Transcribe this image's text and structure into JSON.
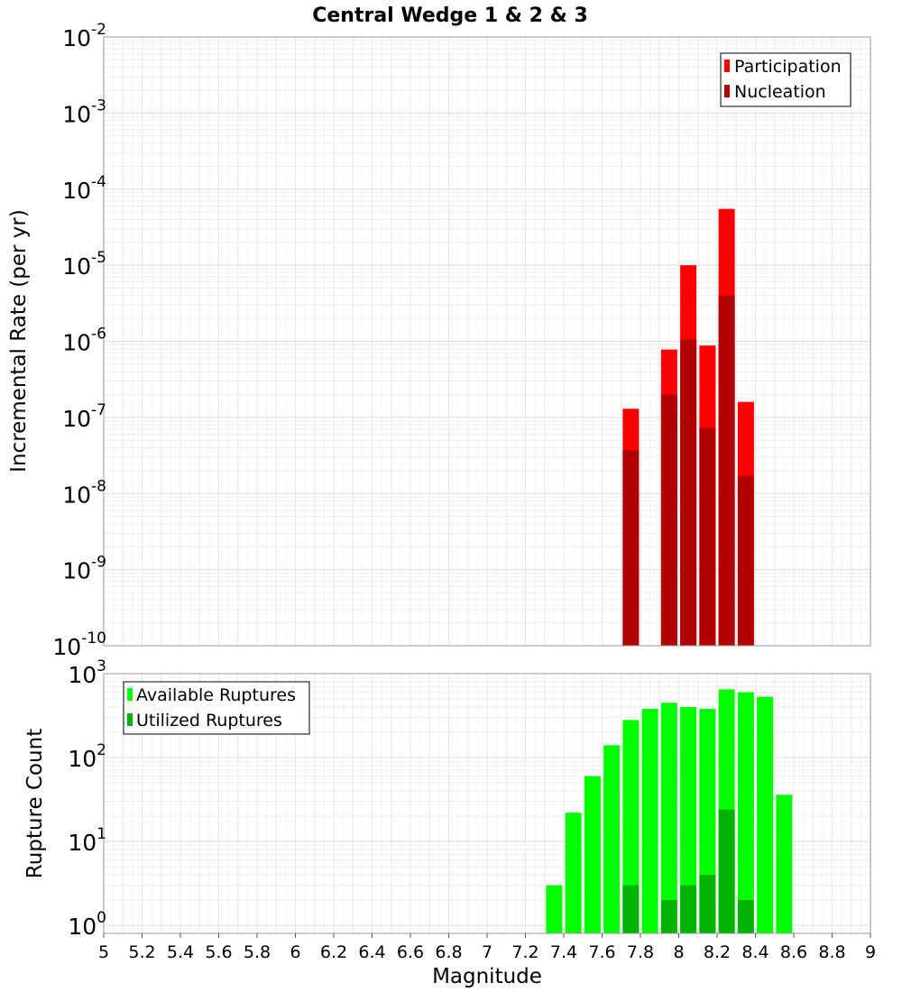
{
  "chart_data": [
    {
      "type": "bar",
      "title": "Central Wedge 1 & 2 & 3",
      "ylabel": "Incremental Rate (per yr)",
      "xlabel": "",
      "y_scale": "log",
      "ylim": [
        1e-10,
        0.01
      ],
      "xlim": [
        5,
        9
      ],
      "y_ticks": [
        {
          "base": "10",
          "exp": "-10"
        },
        {
          "base": "10",
          "exp": "-9"
        },
        {
          "base": "10",
          "exp": "-8"
        },
        {
          "base": "10",
          "exp": "-7"
        },
        {
          "base": "10",
          "exp": "-6"
        },
        {
          "base": "10",
          "exp": "-5"
        },
        {
          "base": "10",
          "exp": "-4"
        },
        {
          "base": "10",
          "exp": "-3"
        },
        {
          "base": "10",
          "exp": "-2"
        }
      ],
      "legend_position": "top-right",
      "series": [
        {
          "name": "Participation",
          "color": "#ff0000",
          "x": [
            7.75,
            7.95,
            8.05,
            8.15,
            8.25,
            8.35
          ],
          "values": [
            1.3e-07,
            7.8e-07,
            1e-05,
            8.8e-07,
            5.5e-05,
            1.6e-07
          ]
        },
        {
          "name": "Nucleation",
          "color": "#b20000",
          "x": [
            7.75,
            7.95,
            8.05,
            8.15,
            8.25,
            8.35
          ],
          "values": [
            3.7e-08,
            2e-07,
            1.05e-06,
            7.3e-08,
            4e-06,
            1.7e-08
          ]
        }
      ]
    },
    {
      "type": "bar",
      "title": "",
      "ylabel": "Rupture Count",
      "xlabel": "Magnitude",
      "y_scale": "log",
      "ylim": [
        0.8,
        1000
      ],
      "xlim": [
        5,
        9
      ],
      "x_ticks": [
        "5",
        "5.2",
        "5.4",
        "5.6",
        "5.8",
        "6",
        "6.2",
        "6.4",
        "6.6",
        "6.8",
        "7",
        "7.2",
        "7.4",
        "7.6",
        "7.8",
        "8",
        "8.2",
        "8.4",
        "8.6",
        "8.8",
        "9"
      ],
      "y_ticks": [
        {
          "base": "10",
          "exp": "0"
        },
        {
          "base": "10",
          "exp": "1"
        },
        {
          "base": "10",
          "exp": "2"
        },
        {
          "base": "10",
          "exp": "3"
        }
      ],
      "legend_position": "top-left",
      "series": [
        {
          "name": "Available Ruptures",
          "color": "#00ff00",
          "x": [
            7.35,
            7.45,
            7.55,
            7.65,
            7.75,
            7.85,
            7.95,
            8.05,
            8.15,
            8.25,
            8.35,
            8.45,
            8.55
          ],
          "values": [
            3,
            22,
            60,
            140,
            280,
            380,
            450,
            400,
            380,
            650,
            600,
            530,
            36
          ]
        },
        {
          "name": "Utilized Ruptures",
          "color": "#00b200",
          "x": [
            7.75,
            7.95,
            8.05,
            8.15,
            8.25,
            8.35
          ],
          "values": [
            3,
            2,
            3,
            4,
            24,
            2
          ]
        }
      ]
    }
  ]
}
